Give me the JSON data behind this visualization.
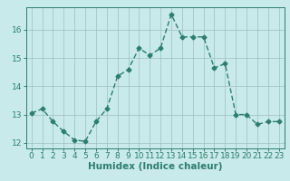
{
  "x": [
    0,
    1,
    2,
    3,
    4,
    5,
    6,
    7,
    8,
    9,
    10,
    11,
    12,
    13,
    14,
    15,
    16,
    17,
    18,
    19,
    20,
    21,
    22,
    23
  ],
  "y": [
    13.05,
    13.2,
    12.75,
    12.4,
    12.1,
    12.05,
    12.75,
    13.2,
    14.35,
    14.6,
    15.35,
    15.1,
    15.35,
    16.55,
    15.75,
    15.75,
    15.75,
    14.65,
    14.8,
    13.0,
    13.0,
    12.65,
    12.75,
    12.75
  ],
  "line_color": "#2e7d6e",
  "marker": "D",
  "markersize": 2.5,
  "linewidth": 1.0,
  "xlabel": "Humidex (Indice chaleur)",
  "xlim": [
    -0.5,
    23.5
  ],
  "ylim": [
    11.8,
    16.8
  ],
  "yticks": [
    12,
    13,
    14,
    15,
    16
  ],
  "xticks": [
    0,
    1,
    2,
    3,
    4,
    5,
    6,
    7,
    8,
    9,
    10,
    11,
    12,
    13,
    14,
    15,
    16,
    17,
    18,
    19,
    20,
    21,
    22,
    23
  ],
  "xtick_labels": [
    "0",
    "1",
    "2",
    "3",
    "4",
    "5",
    "6",
    "7",
    "8",
    "9",
    "10",
    "11",
    "12",
    "13",
    "14",
    "15",
    "16",
    "17",
    "18",
    "19",
    "20",
    "21",
    "22",
    "23"
  ],
  "bg_color": "#c8eaea",
  "grid_color": "#9bbfbf",
  "tick_fontsize": 6.5,
  "xlabel_fontsize": 7.5
}
